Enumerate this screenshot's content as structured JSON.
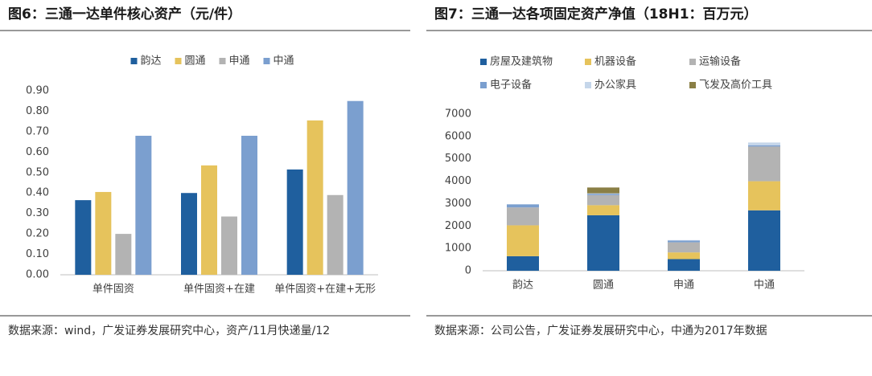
{
  "chart_data": [
    {
      "type": "bar",
      "title": "图6：三通一达单件核心资产（元/件）",
      "categories": [
        "单件固资",
        "单件固资+在建",
        "单件固资+在建+无形"
      ],
      "series": [
        {
          "name": "韵达",
          "color": "#1f5f9e",
          "values": [
            0.365,
            0.4,
            0.515
          ]
        },
        {
          "name": "圆通",
          "color": "#e6c35c",
          "values": [
            0.405,
            0.535,
            0.755
          ]
        },
        {
          "name": "申通",
          "color": "#b3b3b3",
          "values": [
            0.2,
            0.285,
            0.39
          ]
        },
        {
          "name": "中通",
          "color": "#7b9fcf",
          "values": [
            0.68,
            0.68,
            0.85
          ]
        }
      ],
      "ylim": [
        0,
        0.9
      ],
      "yticks": [
        {
          "value": 0,
          "label": "0.00"
        },
        {
          "value": 0.1,
          "label": "0.10"
        },
        {
          "value": 0.2,
          "label": "0.20"
        },
        {
          "value": 0.3,
          "label": "0.30"
        },
        {
          "value": 0.4,
          "label": "0.40"
        },
        {
          "value": 0.5,
          "label": "0.50"
        },
        {
          "value": 0.6,
          "label": "0.60"
        },
        {
          "value": 0.7,
          "label": "0.70"
        },
        {
          "value": 0.8,
          "label": "0.80"
        },
        {
          "value": 0.9,
          "label": "0.90"
        }
      ],
      "source": "数据来源：wind，广发证券发展研究中心，资产/11月快递量/12"
    },
    {
      "type": "stacked_bar",
      "title": "图7：三通一达各项固定资产净值（18H1：百万元）",
      "categories": [
        "韵达",
        "圆通",
        "申通",
        "中通"
      ],
      "series": [
        {
          "name": "房屋及建筑物",
          "color": "#1f5f9e",
          "values": [
            650,
            2480,
            520,
            2700
          ]
        },
        {
          "name": "机器设备",
          "color": "#e6c35c",
          "values": [
            1380,
            450,
            300,
            1300
          ]
        },
        {
          "name": "运输设备",
          "color": "#b3b3b3",
          "values": [
            800,
            450,
            450,
            1550
          ]
        },
        {
          "name": "电子设备",
          "color": "#7b9fcf",
          "values": [
            130,
            60,
            80,
            50
          ]
        },
        {
          "name": "办公家具",
          "color": "#c5d6ea",
          "values": [
            20,
            20,
            20,
            130
          ]
        },
        {
          "name": "飞发及高价工具",
          "color": "#8a7f45",
          "values": [
            0,
            260,
            0,
            0
          ]
        }
      ],
      "ylim": [
        0,
        7000
      ],
      "yticks": [
        0,
        1000,
        2000,
        3000,
        4000,
        5000,
        6000,
        7000
      ],
      "source": "数据来源：公司公告，广发证券发展研究中心，中通为2017年数据"
    }
  ]
}
